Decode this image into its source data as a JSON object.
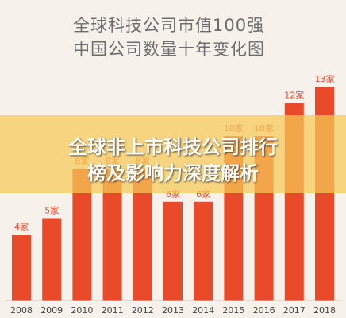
{
  "header": {
    "title_line1": "全球科技公司市值100强",
    "title_line2": "中国公司数量十年变化图"
  },
  "overlay": {
    "line1": "全球非上市科技公司排行",
    "line2": "榜及影响力深度解析"
  },
  "colors": {
    "bar": "#e84a2a",
    "label": "#e84a2a",
    "axis_text": "#444444",
    "overlay": "#f6c956"
  },
  "chart_data": {
    "type": "bar",
    "categories": [
      "2008",
      "2009",
      "2010",
      "2011",
      "2012",
      "2013",
      "2014",
      "2015",
      "2016",
      "2017",
      "2018"
    ],
    "values": [
      4,
      5,
      8,
      8,
      8,
      6,
      6,
      10,
      10,
      12,
      13
    ],
    "data_labels": [
      "4家",
      "5家",
      "8家",
      "8家",
      "8家",
      "6家",
      "6家",
      "10家",
      "10家",
      "12家",
      "13家"
    ],
    "title": "全球科技公司市值100强 中国公司数量十年变化图",
    "xlabel": "",
    "ylabel": "",
    "ylim": [
      0,
      13
    ],
    "grid": false,
    "legend": "none"
  }
}
